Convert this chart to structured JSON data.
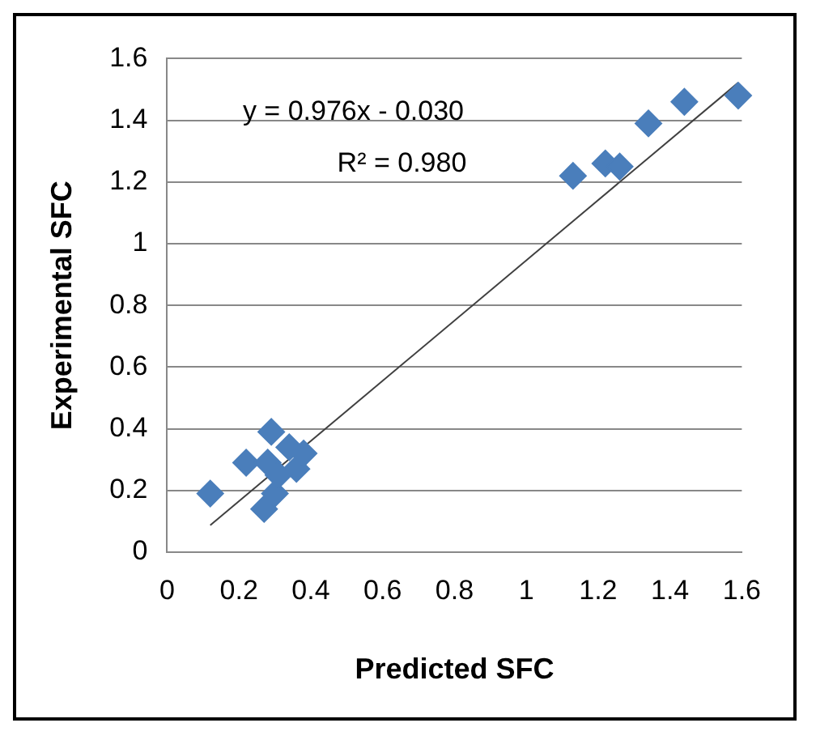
{
  "chart_data": {
    "type": "scatter",
    "xlabel": "Predicted SFC",
    "ylabel": "Experimental SFC",
    "annotations": [
      "y = 0.976x - 0.030",
      "R² = 0.980"
    ],
    "xlim": [
      0,
      1.6
    ],
    "xticks": [
      0,
      0.2,
      0.4,
      0.6,
      0.8,
      1,
      1.2,
      1.4,
      1.6
    ],
    "ylim": [
      0,
      1.6
    ],
    "yticks": [
      0,
      0.2,
      0.4,
      0.6,
      0.8,
      1,
      1.2,
      1.4,
      1.6
    ],
    "grid": "y",
    "legend": false,
    "marker": "diamond",
    "series": [
      {
        "color": "#4a7ebb",
        "x": [
          0.12,
          0.22,
          0.29,
          0.27,
          0.3,
          0.36,
          0.38,
          0.34,
          0.28,
          0.31,
          1.13,
          1.22,
          1.26,
          1.34,
          1.44,
          1.59
        ],
        "values": [
          0.19,
          0.29,
          0.39,
          0.14,
          0.19,
          0.27,
          0.32,
          0.34,
          0.29,
          0.25,
          1.22,
          1.26,
          1.25,
          1.39,
          1.46,
          1.48
        ]
      },
      {
        "type": "line",
        "color": "#404040",
        "x": [
          0.12,
          1.59
        ],
        "values": [
          0.087,
          1.522
        ],
        "marker": "none"
      }
    ]
  }
}
